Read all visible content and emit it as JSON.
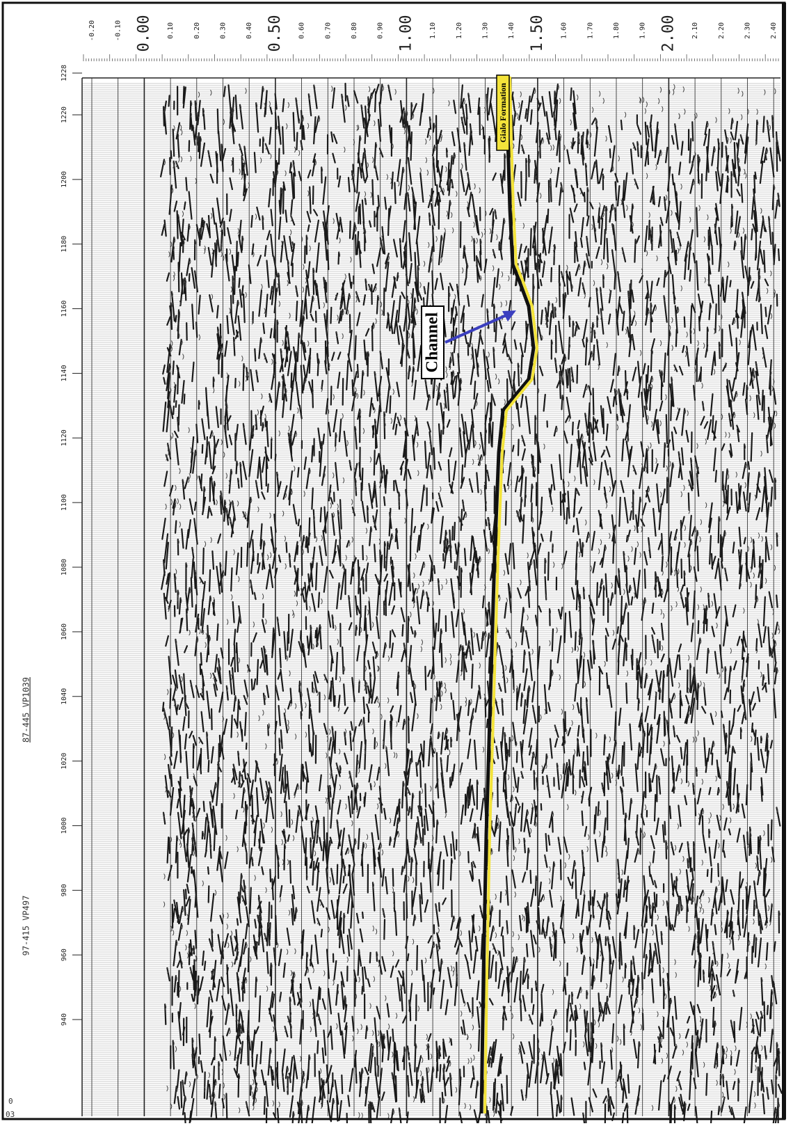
{
  "time_axis": {
    "labels": [
      "-0.20",
      "-0.10",
      "0.00",
      "0.10",
      "0.20",
      "0.30",
      "0.40",
      "0.50",
      "0.60",
      "0.70",
      "0.80",
      "0.90",
      "1.00",
      "1.10",
      "1.20",
      "1.30",
      "1.40",
      "1.50",
      "1.60",
      "1.70",
      "1.80",
      "1.90",
      "2.00",
      "2.10",
      "2.20",
      "2.30",
      "2.40"
    ]
  },
  "trace_axis": {
    "labels": [
      "1228",
      "1220",
      "1200",
      "1180",
      "1160",
      "1140",
      "1120",
      "1100",
      "1080",
      "1060",
      "1040",
      "1020",
      "1000",
      "980",
      "960",
      "940"
    ]
  },
  "line_labels": [
    "97-415 VP497",
    "87-445 VP1039"
  ],
  "corner_labels": [
    "0",
    "03"
  ],
  "annotations": {
    "channel": "Channel",
    "horizon": "Gialo Formation"
  }
}
